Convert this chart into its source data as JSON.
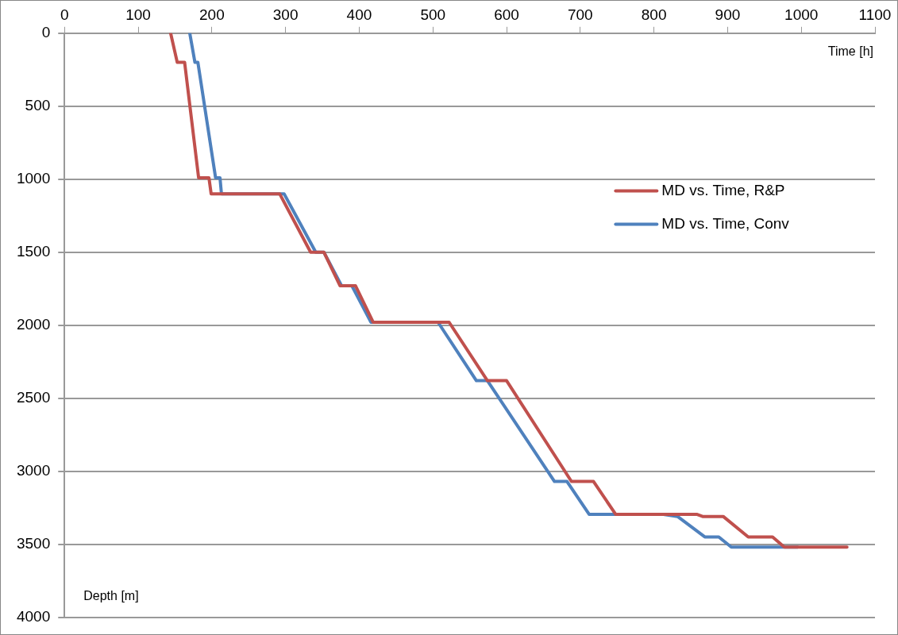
{
  "chart_data": {
    "type": "line",
    "xlabel": "Time [h]",
    "ylabel": "Depth [m]",
    "xlim": [
      0,
      1100
    ],
    "xticks": [
      0,
      100,
      200,
      300,
      400,
      500,
      600,
      700,
      800,
      900,
      1000,
      1100
    ],
    "ylim": [
      4000,
      0
    ],
    "yticks": [
      0,
      500,
      1000,
      1500,
      2000,
      2500,
      3000,
      3500,
      4000
    ],
    "grid": "y",
    "legend": "right",
    "marker": "none",
    "line_style": "solid",
    "series": [
      {
        "name": "MD vs. Time, R&P",
        "color": "#c0504d",
        "x": [
          144,
          153,
          163,
          182,
          196,
          199,
          292,
          334,
          352,
          374,
          395,
          419,
          522,
          574,
          600,
          688,
          718,
          748,
          858,
          866,
          894,
          928,
          961,
          977,
          1062
        ],
        "values": [
          0,
          200,
          200,
          990,
          990,
          1100,
          1100,
          1500,
          1500,
          1730,
          1730,
          1980,
          1980,
          2380,
          2380,
          3070,
          3070,
          3295,
          3295,
          3310,
          3310,
          3450,
          3450,
          3520,
          3520
        ]
      },
      {
        "name": "MD vs. Time, Conv",
        "color": "#4f81bd",
        "x": [
          170,
          177,
          181,
          205,
          211,
          213,
          298,
          341,
          352,
          376,
          390,
          416,
          507,
          559,
          574,
          665,
          682,
          712,
          813,
          832,
          869,
          888,
          905,
          995
        ],
        "values": [
          0,
          200,
          200,
          990,
          990,
          1100,
          1100,
          1500,
          1500,
          1730,
          1730,
          1980,
          1980,
          2380,
          2380,
          3070,
          3070,
          3295,
          3295,
          3310,
          3450,
          3450,
          3520,
          3520
        ]
      }
    ]
  }
}
